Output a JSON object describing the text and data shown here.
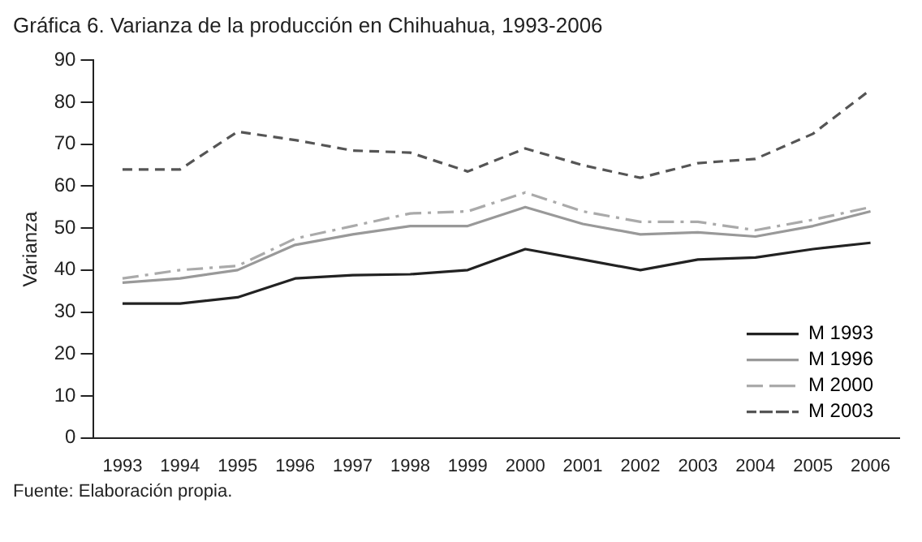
{
  "chart_data": {
    "type": "line",
    "title": "Gráfica 6. Varianza de la producción en Chihuahua, 1993-2006",
    "ylabel": "Varianza",
    "categories": [
      "1993",
      "1994",
      "1995",
      "1996",
      "1997",
      "1998",
      "1999",
      "2000",
      "2001",
      "2002",
      "2003",
      "2004",
      "2005",
      "2006"
    ],
    "series": [
      {
        "name": "M 1993",
        "color": "#222222",
        "line_style": "solid",
        "values": [
          32,
          32,
          33.5,
          38,
          38.8,
          39,
          40,
          45,
          42.5,
          40,
          42.5,
          43,
          45,
          46.5
        ]
      },
      {
        "name": "M 1996",
        "color": "#999999",
        "line_style": "solid",
        "values": [
          37,
          38,
          40,
          46,
          48.5,
          50.5,
          50.5,
          55,
          51,
          48.5,
          49,
          48,
          50.5,
          54
        ]
      },
      {
        "name": "M 2000",
        "color": "#aaaaaa",
        "line_style": "dashdot",
        "values": [
          38,
          40,
          41,
          47.5,
          50.5,
          53.5,
          54,
          58.5,
          54,
          51.5,
          51.5,
          49.5,
          52,
          55
        ]
      },
      {
        "name": "M 2003",
        "color": "#555555",
        "line_style": "dashed",
        "values": [
          64,
          64,
          73,
          71,
          68.5,
          68,
          63.5,
          69,
          65,
          62,
          65.5,
          66.5,
          72.5,
          83
        ]
      }
    ],
    "ylim": [
      0,
      90
    ],
    "yticks": [
      0,
      10,
      20,
      30,
      40,
      50,
      60,
      70,
      80,
      90
    ],
    "grid": false,
    "legend": "bottom right",
    "marker": "none",
    "annotations": [
      "Fuente: Elaboración propia."
    ]
  }
}
